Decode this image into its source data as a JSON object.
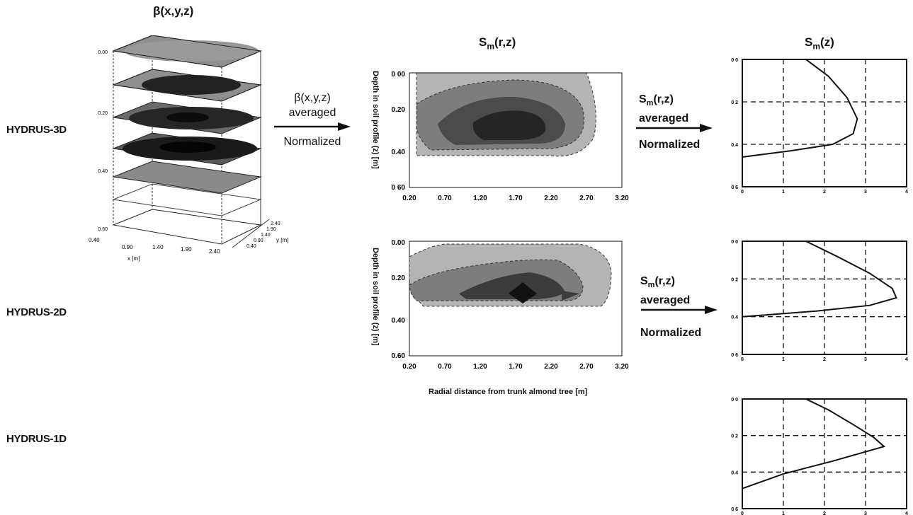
{
  "row_labels": {
    "r3d": "HYDRUS-3D",
    "r2d": "HYDRUS-2D",
    "r1d": "HYDRUS-1D"
  },
  "titles": {
    "beta": "β(x,y,z)",
    "smrz": "Sm(r,z)",
    "smz": "Sm(z)"
  },
  "arrow1": {
    "line1": "β(x,y,z)",
    "line2": "averaged",
    "line3": "Normalized"
  },
  "arrow2": {
    "line1": "Sm(r,z)",
    "line2": "averaged",
    "line3": "Normalized"
  },
  "arrow3": {
    "line1": "Sm(r,z)",
    "line2": "averaged",
    "line3": "Normalized"
  },
  "block3d": {
    "z_ticks": [
      "0.00",
      "0.20",
      "0.40",
      "0.60"
    ],
    "x_ticks": [
      "0.40",
      "0.90",
      "1.40",
      "1.90",
      "2.40"
    ],
    "y_ticks": [
      "0.40",
      "0.90",
      "1.40",
      "1.90",
      "2.40"
    ],
    "x_label": "x [m]",
    "y_label": "y [m]"
  },
  "contour_plots": {
    "y_label": "Depth in soil profile (z) [m]",
    "x_label": "Radial distance from trunk almond tree [m]",
    "top_y_ticks": [
      "0 00",
      "0.20",
      "0.40",
      "0 60"
    ],
    "bottom_y_ticks": [
      "0.00",
      "0.20",
      "0.40",
      "0.60"
    ],
    "x_ticks": [
      "0.20",
      "0.70",
      "1.20",
      "1.70",
      "2.20",
      "2.70",
      "3.20"
    ]
  },
  "profile_plots": {
    "y_ticks": [
      "0 0",
      "0 2",
      "0.4",
      "0 6"
    ],
    "x_ticks": [
      "0",
      "1",
      "2",
      "3",
      "4"
    ]
  },
  "chart_data": [
    {
      "type": "line",
      "title": "Sm(z)",
      "series": [
        {
          "x": [
            1.55,
            2.1,
            2.55,
            2.8,
            2.7,
            2.2,
            1.2,
            0.0
          ],
          "y": [
            0.0,
            0.08,
            0.18,
            0.28,
            0.35,
            0.4,
            0.43,
            0.46
          ]
        }
      ],
      "xlim": [
        0,
        4
      ],
      "ylim": [
        0,
        0.6
      ]
    },
    {
      "type": "line",
      "title": "Sm(z)",
      "series": [
        {
          "x": [
            1.55,
            2.3,
            3.1,
            3.65,
            3.75,
            3.1,
            1.8,
            0.0
          ],
          "y": [
            0.0,
            0.08,
            0.17,
            0.25,
            0.3,
            0.34,
            0.37,
            0.4
          ]
        }
      ],
      "xlim": [
        0,
        4
      ],
      "ylim": [
        0,
        0.6
      ]
    },
    {
      "type": "line",
      "title": "Sm(z)",
      "series": [
        {
          "x": [
            1.55,
            2.1,
            2.7,
            3.2,
            3.45,
            2.2,
            1.0,
            0.0
          ],
          "y": [
            0.0,
            0.06,
            0.14,
            0.21,
            0.26,
            0.34,
            0.41,
            0.49
          ]
        }
      ],
      "xlim": [
        0,
        4
      ],
      "ylim": [
        0,
        0.6
      ]
    }
  ]
}
